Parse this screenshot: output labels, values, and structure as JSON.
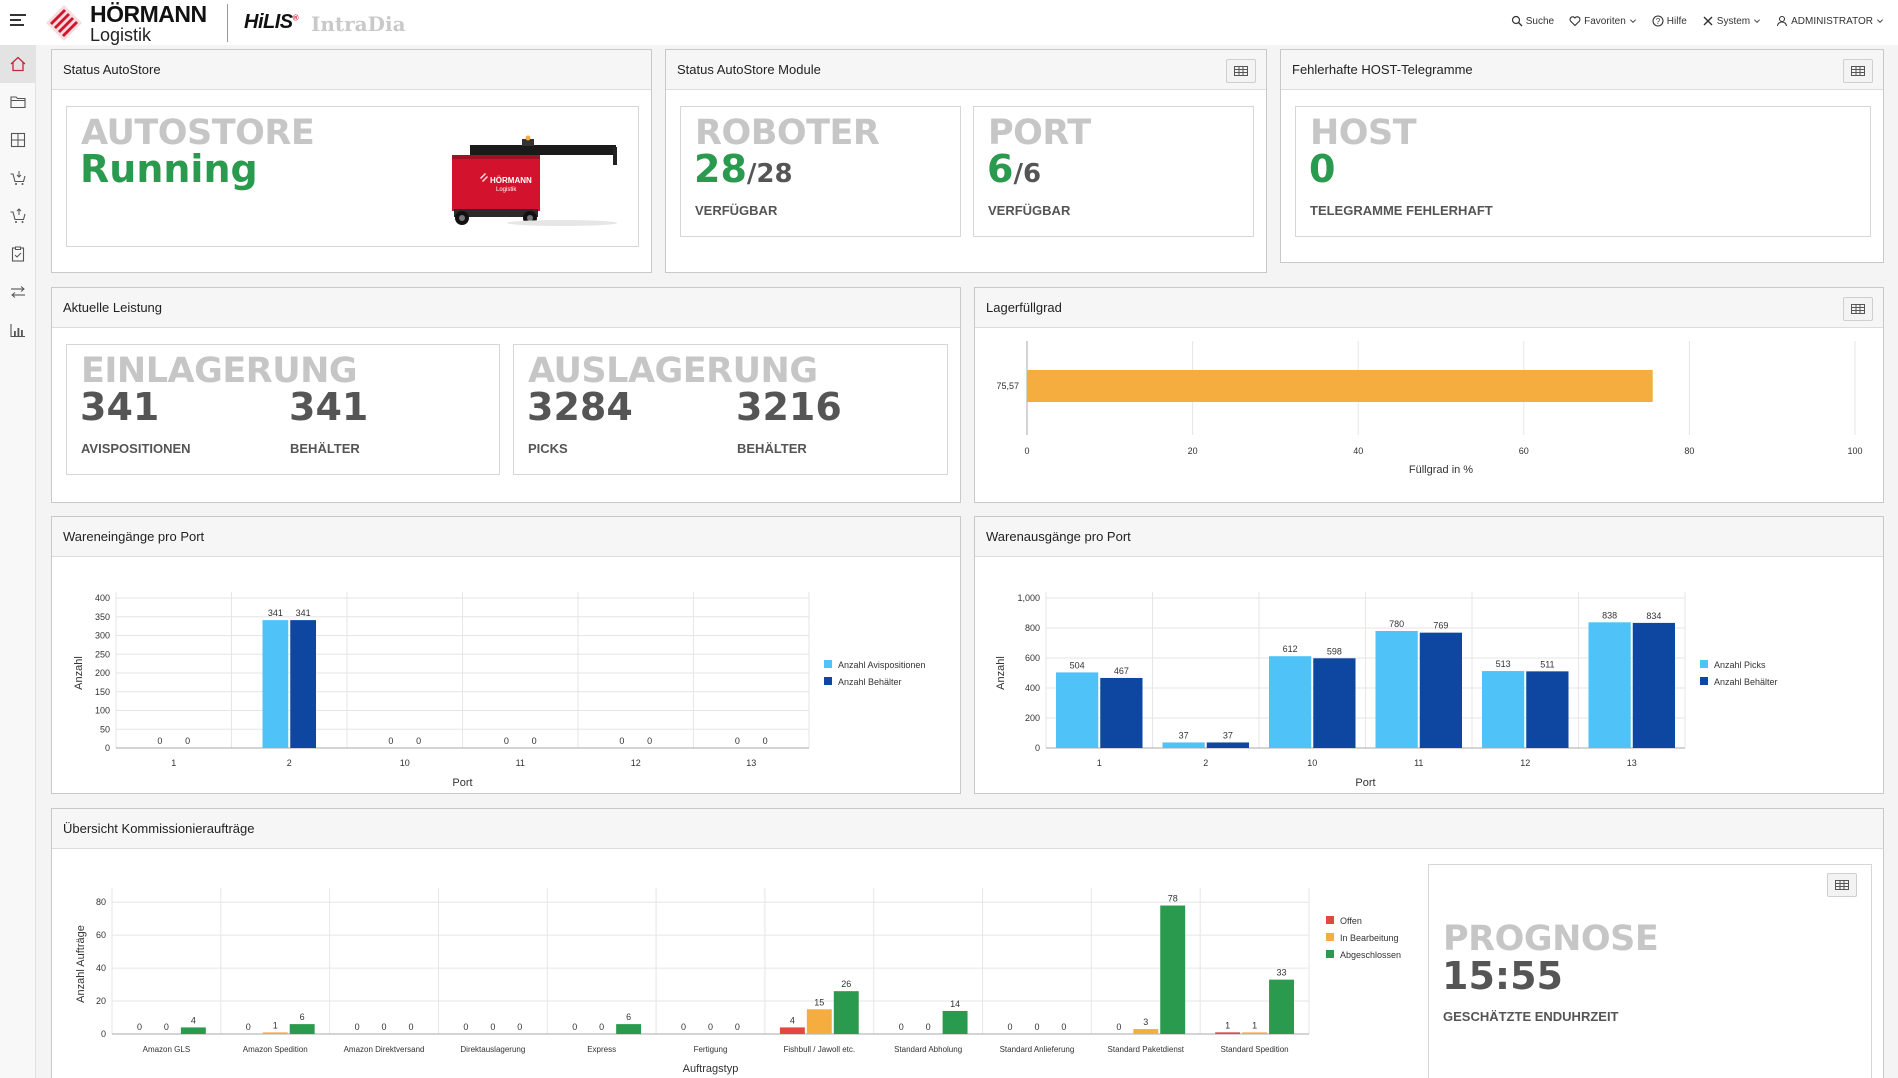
{
  "brand": {
    "logo_line1": "HÖRMANN",
    "logo_line2": "Logistik",
    "product": "HiLIS",
    "product_suffix": "IntraDia"
  },
  "topnav": {
    "search": "Suche",
    "favorites": "Favoriten",
    "help": "Hilfe",
    "system": "System",
    "user": "ADMINISTRATOR"
  },
  "sidebar": {
    "items": [
      "home-icon",
      "folder-icon",
      "grid-icon",
      "cart-in-icon",
      "cart-out-icon",
      "clipboard-icon",
      "transfer-icon",
      "chart-icon"
    ]
  },
  "status_autostore": {
    "title": "Status AutoStore",
    "label": "AUTOSTORE",
    "value": "Running",
    "image_caption": "HÖRMANN",
    "image_caption2": "Logistik"
  },
  "status_modules": {
    "title": "Status AutoStore Module",
    "robot_label": "ROBOTER",
    "robot_value": "28",
    "robot_total": "/28",
    "robot_sub": "VERFÜGBAR",
    "port_label": "PORT",
    "port_value": "6",
    "port_total": "/6",
    "port_sub": "VERFÜGBAR"
  },
  "host": {
    "title": "Fehlerhafte HOST-Telegramme",
    "label": "HOST",
    "value": "0",
    "sub": "TELEGRAMME FEHLERHAFT"
  },
  "leistung": {
    "title": "Aktuelle Leistung",
    "in_label": "EINLAGERUNG",
    "in_v1": "341",
    "in_s1": "AVISPOSITIONEN",
    "in_v2": "341",
    "in_s2": "BEHÄLTER",
    "out_label": "AUSLAGERUNG",
    "out_v1": "3284",
    "out_s1": "PICKS",
    "out_v2": "3216",
    "out_s2": "BEHÄLTER"
  },
  "lager": {
    "title": "Lagerfüllgrad"
  },
  "wareneingang": {
    "title": "Wareneingänge pro Port"
  },
  "warenausgang": {
    "title": "Warenausgänge pro Port"
  },
  "kommission": {
    "title": "Übersicht Kommissionieraufträge"
  },
  "prognose": {
    "label": "PROGNOSE",
    "value": "15:55",
    "sub": "GESCHÄTZTE ENDUHRZEIT"
  },
  "colors": {
    "green": "#2a9a4e",
    "light_blue": "#4fc3f7",
    "dark_blue": "#0d47a1",
    "orange": "#f5ad40",
    "red": "#e2483d"
  },
  "chart_data": [
    {
      "id": "lager",
      "type": "bar",
      "orientation": "horizontal",
      "categories": [
        "75,57"
      ],
      "values": [
        75.57
      ],
      "xlabel": "Füllgrad in %",
      "xlim": [
        0,
        100
      ],
      "xticks": [
        0,
        20,
        40,
        60,
        80,
        100
      ],
      "grid": true
    },
    {
      "id": "eingang",
      "type": "bar",
      "categories": [
        "1",
        "2",
        "10",
        "11",
        "12",
        "13"
      ],
      "series": [
        {
          "name": "Anzahl Avispositionen",
          "values": [
            0,
            341,
            0,
            0,
            0,
            0
          ]
        },
        {
          "name": "Anzahl Behälter",
          "values": [
            0,
            341,
            0,
            0,
            0,
            0
          ]
        }
      ],
      "xlabel": "Port",
      "ylabel": "Anzahl",
      "ylim": [
        0,
        400
      ],
      "yticks": [
        0,
        50,
        100,
        150,
        200,
        250,
        300,
        350,
        400
      ],
      "legend": "right",
      "grid": true
    },
    {
      "id": "ausgang",
      "type": "bar",
      "categories": [
        "1",
        "2",
        "10",
        "11",
        "12",
        "13"
      ],
      "series": [
        {
          "name": "Anzahl Picks",
          "values": [
            504,
            37,
            612,
            780,
            513,
            838
          ]
        },
        {
          "name": "Anzahl Behälter",
          "values": [
            467,
            37,
            598,
            769,
            511,
            834
          ]
        }
      ],
      "xlabel": "Port",
      "ylabel": "Anzahl",
      "ylim": [
        0,
        1000
      ],
      "yticks": [
        "0",
        "200",
        "400",
        "600",
        "800",
        "1,000"
      ],
      "legend": "right",
      "grid": true
    },
    {
      "id": "kommission",
      "type": "bar",
      "categories": [
        "Amazon GLS",
        "Amazon Spedition",
        "Amazon Direktversand",
        "Direktauslagerung",
        "Express",
        "Fertigung",
        "Fishbull / Jawoll etc.",
        "Standard Abholung",
        "Standard Anlieferung",
        "Standard Paketdienst",
        "Standard Spedition"
      ],
      "series": [
        {
          "name": "Offen",
          "values": [
            0,
            0,
            0,
            0,
            0,
            0,
            4,
            0,
            0,
            0,
            1
          ]
        },
        {
          "name": "In Bearbeitung",
          "values": [
            0,
            1,
            0,
            0,
            0,
            0,
            15,
            0,
            0,
            3,
            1
          ]
        },
        {
          "name": "Abgeschlossen",
          "values": [
            4,
            6,
            0,
            0,
            6,
            0,
            26,
            14,
            0,
            78,
            33
          ]
        }
      ],
      "xlabel": "Auftragstyp",
      "ylabel": "Anzahl Aufträge",
      "ylim": [
        0,
        85
      ],
      "yticks": [
        0,
        20,
        40,
        60,
        80
      ],
      "legend": "right",
      "grid": true
    }
  ]
}
